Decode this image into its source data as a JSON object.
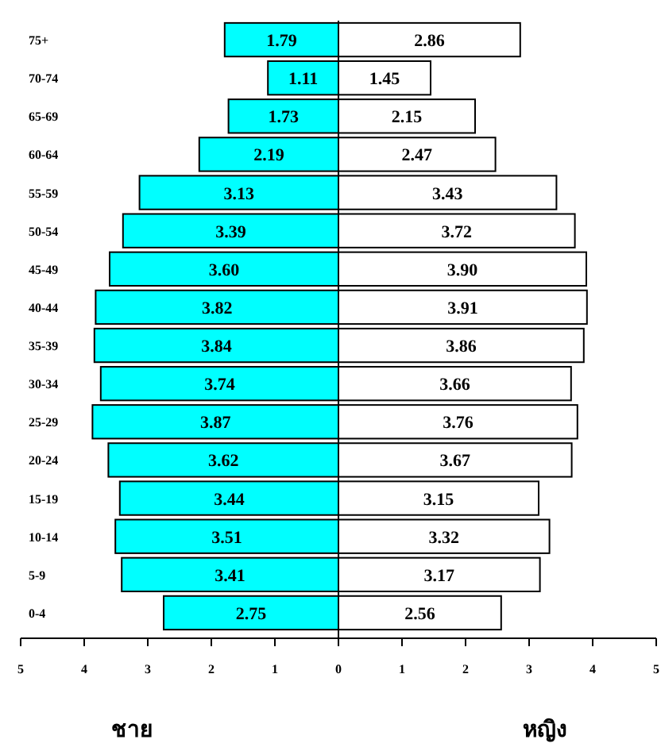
{
  "chart_data": [
    {
      "type": "bar",
      "orientation": "horizontal",
      "xlabel": "ชาย",
      "color": "#00ffff",
      "categories": [
        "75+",
        "70-74",
        "65-69",
        "60-64",
        "55-59",
        "50-54",
        "45-49",
        "40-44",
        "35-39",
        "30-34",
        "25-29",
        "20-24",
        "15-19",
        "10-14",
        "5-9",
        "0-4"
      ],
      "values": [
        1.79,
        1.11,
        1.73,
        2.19,
        3.13,
        3.39,
        3.6,
        3.82,
        3.84,
        3.74,
        3.87,
        3.62,
        3.44,
        3.51,
        3.41,
        2.75
      ],
      "value_labels": [
        "1.79",
        "1.11",
        "1.73",
        "2.19",
        "3.13",
        "3.39",
        "3.60",
        "3.82",
        "3.84",
        "3.74",
        "3.87",
        "3.62",
        "3.44",
        "3.51",
        "3.41",
        "2.75"
      ],
      "xlim": [
        5,
        0
      ],
      "xticks": [
        5,
        4,
        3,
        2,
        1,
        0
      ]
    },
    {
      "type": "bar",
      "orientation": "horizontal",
      "xlabel": "หญิง",
      "color": "#ffffff",
      "tick_labels": "x",
      "categories": [
        null,
        null,
        null,
        null,
        null,
        null,
        null,
        null,
        null,
        null,
        null,
        null,
        null,
        null,
        null,
        null
      ],
      "values": [
        2.86,
        1.45,
        2.15,
        2.47,
        3.43,
        3.72,
        3.9,
        3.91,
        3.86,
        3.66,
        3.76,
        3.67,
        3.15,
        3.32,
        3.17,
        2.56
      ],
      "value_labels": [
        "2.86",
        "1.45",
        "2.15",
        "2.47",
        "3.43",
        "3.72",
        "3.90",
        "3.91",
        "3.86",
        "3.66",
        "3.76",
        "3.67",
        "3.15",
        "3.32",
        "3.17",
        "2.56"
      ],
      "xlim": [
        0,
        5
      ],
      "xticks": [
        1,
        2,
        3,
        4,
        5
      ]
    }
  ]
}
